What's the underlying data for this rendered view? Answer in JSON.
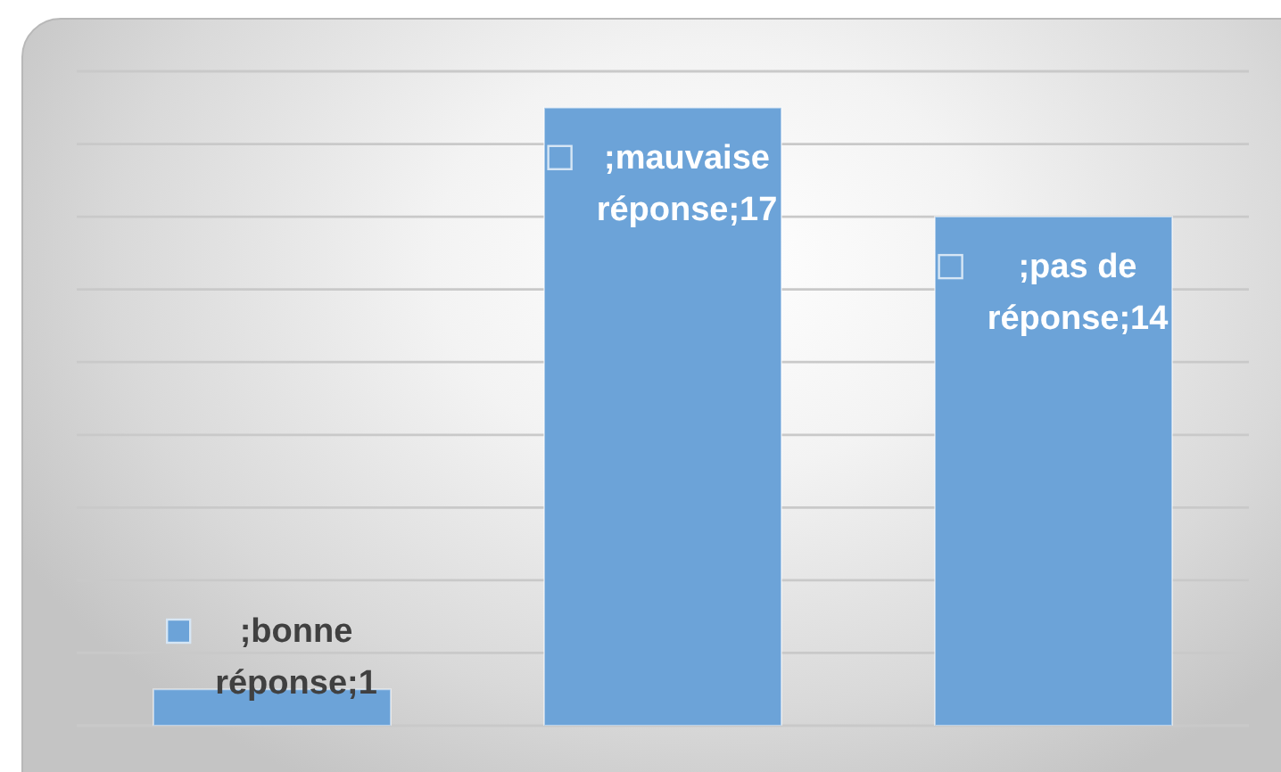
{
  "chart_data": {
    "type": "bar",
    "categories": [
      null,
      null,
      null
    ],
    "values": [
      1,
      17,
      14
    ],
    "color": "#6ca3d8",
    "value_labels": [
      ";bonne réponse;1",
      ";mauvaise réponse;17",
      ";pas de réponse;14"
    ],
    "ylim": [
      0,
      18
    ],
    "yticks": [
      {
        "value": 0,
        "label": null
      },
      {
        "value": 2,
        "label": null
      },
      {
        "value": 4,
        "label": null
      },
      {
        "value": 6,
        "label": null
      },
      {
        "value": 8,
        "label": null
      },
      {
        "value": 10,
        "label": null
      },
      {
        "value": 12,
        "label": null
      },
      {
        "value": 14,
        "label": null
      },
      {
        "value": 16,
        "label": null
      },
      {
        "value": 18,
        "label": null
      }
    ],
    "grid": "y"
  }
}
